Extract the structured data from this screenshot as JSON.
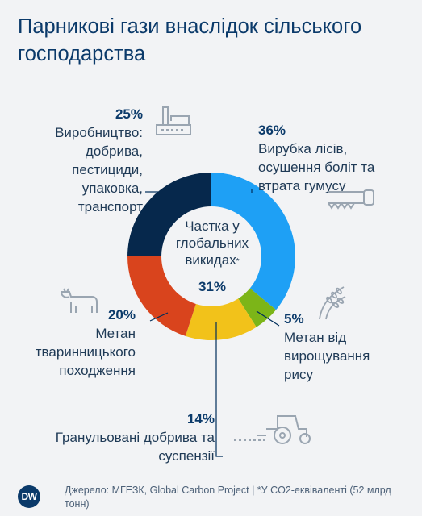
{
  "title_lines": [
    "Парникові гази внаслідок сільського",
    "господарства"
  ],
  "center": {
    "label_lines": [
      "Частка у",
      "глобальних",
      "викидах"
    ],
    "footnote_mark": "*"
  },
  "footer": {
    "logo": "DW",
    "source": "Джерело: МГЕЗК, Global Carbon Project | *У CO2-еквіваленті (52 млрд тонн)"
  },
  "icons": [
    "factory-icon",
    "saw-icon",
    "rice-icon",
    "cow-icon",
    "tractor-icon"
  ],
  "chart_data": {
    "type": "pie",
    "donut": true,
    "start_angle_deg": 0,
    "slices": [
      {
        "key": "deforestation",
        "pct_label": "36%",
        "value": 36,
        "color": "#1ea0f5",
        "label_lines": [
          "Вирубка лісів,",
          "осушення боліт та",
          "втрата гумусу"
        ]
      },
      {
        "key": "rice",
        "pct_label": "5%",
        "value": 5,
        "color": "#7cb518",
        "label_lines": [
          "Метан від",
          "вирощування",
          "рису"
        ]
      },
      {
        "key": "fertilizers",
        "pct_label": "14%",
        "value": 14,
        "color": "#f2c21a",
        "label_lines": [
          "Гранульовані добрива та",
          "суспензії"
        ]
      },
      {
        "key": "livestock",
        "pct_label": "20%",
        "value": 20,
        "color": "#d9441d",
        "label_lines": [
          "Метан",
          "тваринницького",
          "походження"
        ]
      },
      {
        "key": "production",
        "pct_label": "25%",
        "value": 25,
        "color": "#06284c",
        "label_lines": [
          "Виробництво:",
          "добрива,",
          "пестициди,",
          "упаковка,",
          "транспорт"
        ]
      }
    ],
    "highlight": {
      "pct_label": "31%",
      "label_lines": [
        "Частка у",
        "глобальних",
        "викидах"
      ]
    }
  }
}
